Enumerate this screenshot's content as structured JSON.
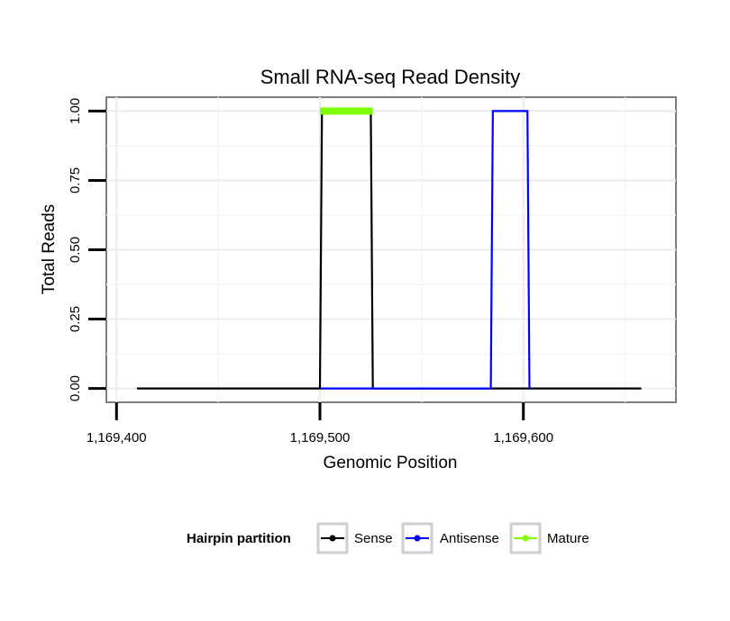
{
  "chart_data": {
    "type": "line",
    "title": "Small RNA-seq Read Density",
    "xlabel": "Genomic Position",
    "ylabel": "Total Reads",
    "xlim": [
      1169395,
      1169675
    ],
    "ylim": [
      -0.05,
      1.05
    ],
    "x_ticks": [
      1169400,
      1169500,
      1169600
    ],
    "x_tick_labels": [
      "1,169,400",
      "1,169,500",
      "1,169,600"
    ],
    "y_ticks": [
      0,
      0.25,
      0.5,
      0.75,
      1
    ],
    "y_tick_labels": [
      "0.00",
      "0.25",
      "0.50",
      "0.75",
      "1.00"
    ],
    "grid": true,
    "legend_position": "bottom",
    "legend_title": "Hairpin partition",
    "series": [
      {
        "name": "Sense",
        "color": "#000000",
        "x": [
          1169410,
          1169500,
          1169501,
          1169525,
          1169526,
          1169658
        ],
        "y": [
          0,
          0,
          1,
          1,
          0,
          0
        ]
      },
      {
        "name": "Antisense",
        "color": "#0000ff",
        "x": [
          1169500,
          1169526,
          1169584,
          1169585,
          1169602,
          1169603
        ],
        "y": [
          0,
          0,
          0,
          1,
          1,
          0
        ]
      },
      {
        "name": "Mature",
        "color": "#7fff00",
        "x": [
          1169500,
          1169526
        ],
        "y": [
          1,
          1
        ]
      }
    ]
  }
}
